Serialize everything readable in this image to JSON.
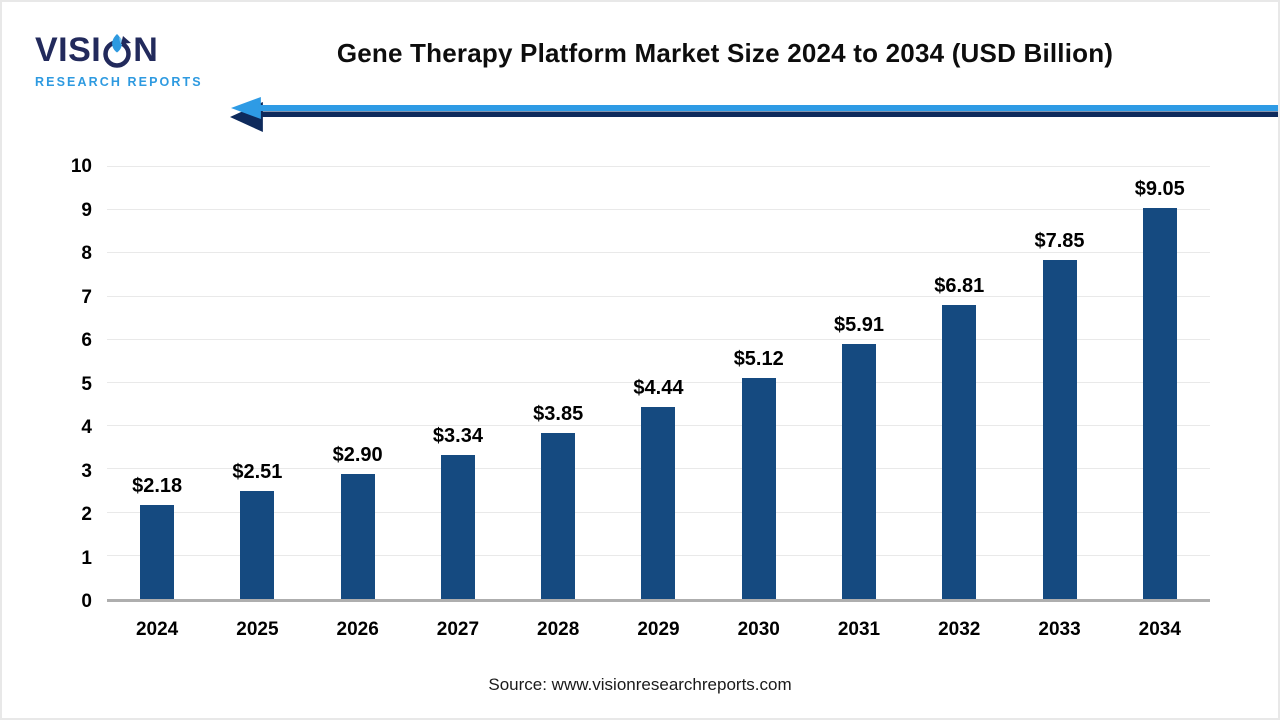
{
  "logo": {
    "brand_left": "VISI",
    "brand_right": "N",
    "subtitle": "RESEARCH REPORTS",
    "navy": "#222A5C",
    "blue": "#2E9AE0"
  },
  "header": {
    "title": "Gene Therapy Platform Market Size 2024 to 2034 (USD Billion)"
  },
  "decoration": {
    "arrow_direction": "left",
    "arrow_light_blue": "#2E9BE5",
    "arrow_navy": "#0E2A5C"
  },
  "chart_data": {
    "type": "bar",
    "title": "Gene Therapy Platform Market Size 2024 to 2034 (USD Billion)",
    "categories": [
      "2024",
      "2025",
      "2026",
      "2027",
      "2028",
      "2029",
      "2030",
      "2031",
      "2032",
      "2033",
      "2034"
    ],
    "values": [
      2.18,
      2.51,
      2.9,
      3.34,
      3.85,
      4.44,
      5.12,
      5.91,
      6.81,
      7.85,
      9.05
    ],
    "labels": [
      "$2.18",
      "$2.51",
      "$2.90",
      "$3.34",
      "$3.85",
      "$4.44",
      "$5.12",
      "$5.91",
      "$6.81",
      "$7.85",
      "$9.05"
    ],
    "xlabel": "",
    "ylabel": "",
    "ylim": [
      0,
      10
    ],
    "yticks": [
      "0",
      "1",
      "2",
      "3",
      "4",
      "5",
      "6",
      "7",
      "8",
      "9",
      "10"
    ],
    "grid": true,
    "legend": false,
    "bar_color": "#154A80",
    "unit": "USD Billion"
  },
  "footer": {
    "source": "Source: www.visionresearchreports.com"
  }
}
